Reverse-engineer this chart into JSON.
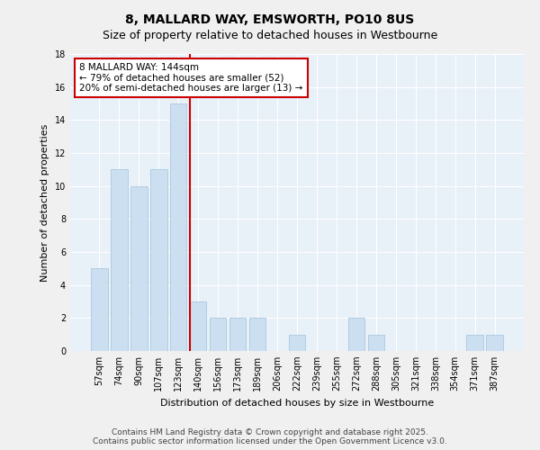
{
  "title_line1": "8, MALLARD WAY, EMSWORTH, PO10 8US",
  "title_line2": "Size of property relative to detached houses in Westbourne",
  "xlabel": "Distribution of detached houses by size in Westbourne",
  "ylabel": "Number of detached properties",
  "categories": [
    "57sqm",
    "74sqm",
    "90sqm",
    "107sqm",
    "123sqm",
    "140sqm",
    "156sqm",
    "173sqm",
    "189sqm",
    "206sqm",
    "222sqm",
    "239sqm",
    "255sqm",
    "272sqm",
    "288sqm",
    "305sqm",
    "321sqm",
    "338sqm",
    "354sqm",
    "371sqm",
    "387sqm"
  ],
  "values": [
    5,
    11,
    10,
    11,
    15,
    3,
    2,
    2,
    2,
    0,
    1,
    0,
    0,
    2,
    1,
    0,
    0,
    0,
    0,
    1,
    1
  ],
  "bar_color": "#ccdff0",
  "bar_edge_color": "#aac8e0",
  "vline_color": "#cc0000",
  "annotation_text": "8 MALLARD WAY: 144sqm\n← 79% of detached houses are smaller (52)\n20% of semi-detached houses are larger (13) →",
  "annotation_box_facecolor": "#ffffff",
  "annotation_box_edgecolor": "#cc0000",
  "ylim": [
    0,
    18
  ],
  "yticks": [
    0,
    2,
    4,
    6,
    8,
    10,
    12,
    14,
    16,
    18
  ],
  "plot_bg_color": "#e8f0f8",
  "fig_bg_color": "#f0f0f0",
  "footer_text": "Contains HM Land Registry data © Crown copyright and database right 2025.\nContains public sector information licensed under the Open Government Licence v3.0.",
  "title_fontsize": 10,
  "subtitle_fontsize": 9,
  "axis_label_fontsize": 8,
  "tick_fontsize": 7,
  "annotation_fontsize": 7.5,
  "footer_fontsize": 6.5
}
